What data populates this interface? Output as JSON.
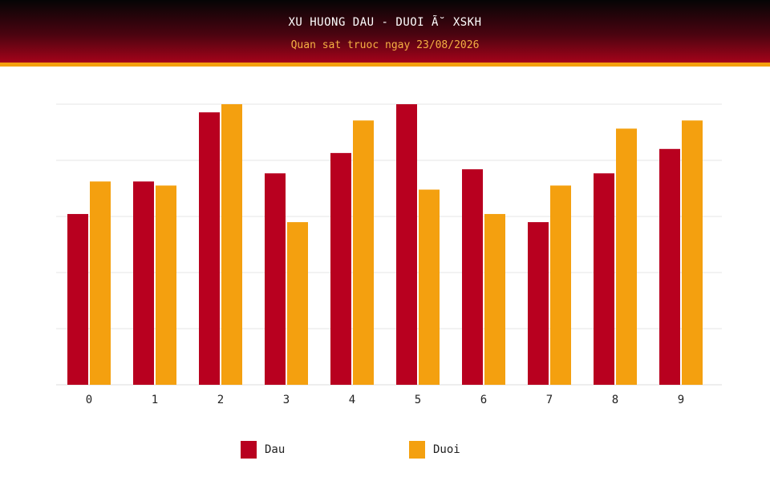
{
  "header": {
    "title": "XU HUONG DAU - DUOI Ã˘ XSKH",
    "subtitle": "Quan sat truoc ngay 23/08/2026"
  },
  "colors": {
    "dau": "#b8001f",
    "duoi": "#f4a00f",
    "grid": "#e6e6e6",
    "axis": "#dddddd"
  },
  "chart_data": {
    "type": "bar",
    "title": "XU HUONG DAU - DUOI Ã˘ XSKH",
    "subtitle": "Quan sat truoc ngay 23/08/2026",
    "categories": [
      "0",
      "1",
      "2",
      "3",
      "4",
      "5",
      "6",
      "7",
      "8",
      "9"
    ],
    "series": [
      {
        "name": "Dau",
        "values": [
          42,
          50,
          67,
          52,
          57,
          69,
          53,
          40,
          52,
          58
        ]
      },
      {
        "name": "Duoi",
        "values": [
          50,
          49,
          69,
          40,
          65,
          48,
          42,
          49,
          63,
          65
        ]
      }
    ],
    "ylim": [
      0,
      69
    ],
    "grid": true,
    "legend": "bottom-center"
  },
  "legend": [
    {
      "label": "Dau",
      "color": "#b8001f"
    },
    {
      "label": "Duoi",
      "color": "#f4a00f"
    }
  ]
}
